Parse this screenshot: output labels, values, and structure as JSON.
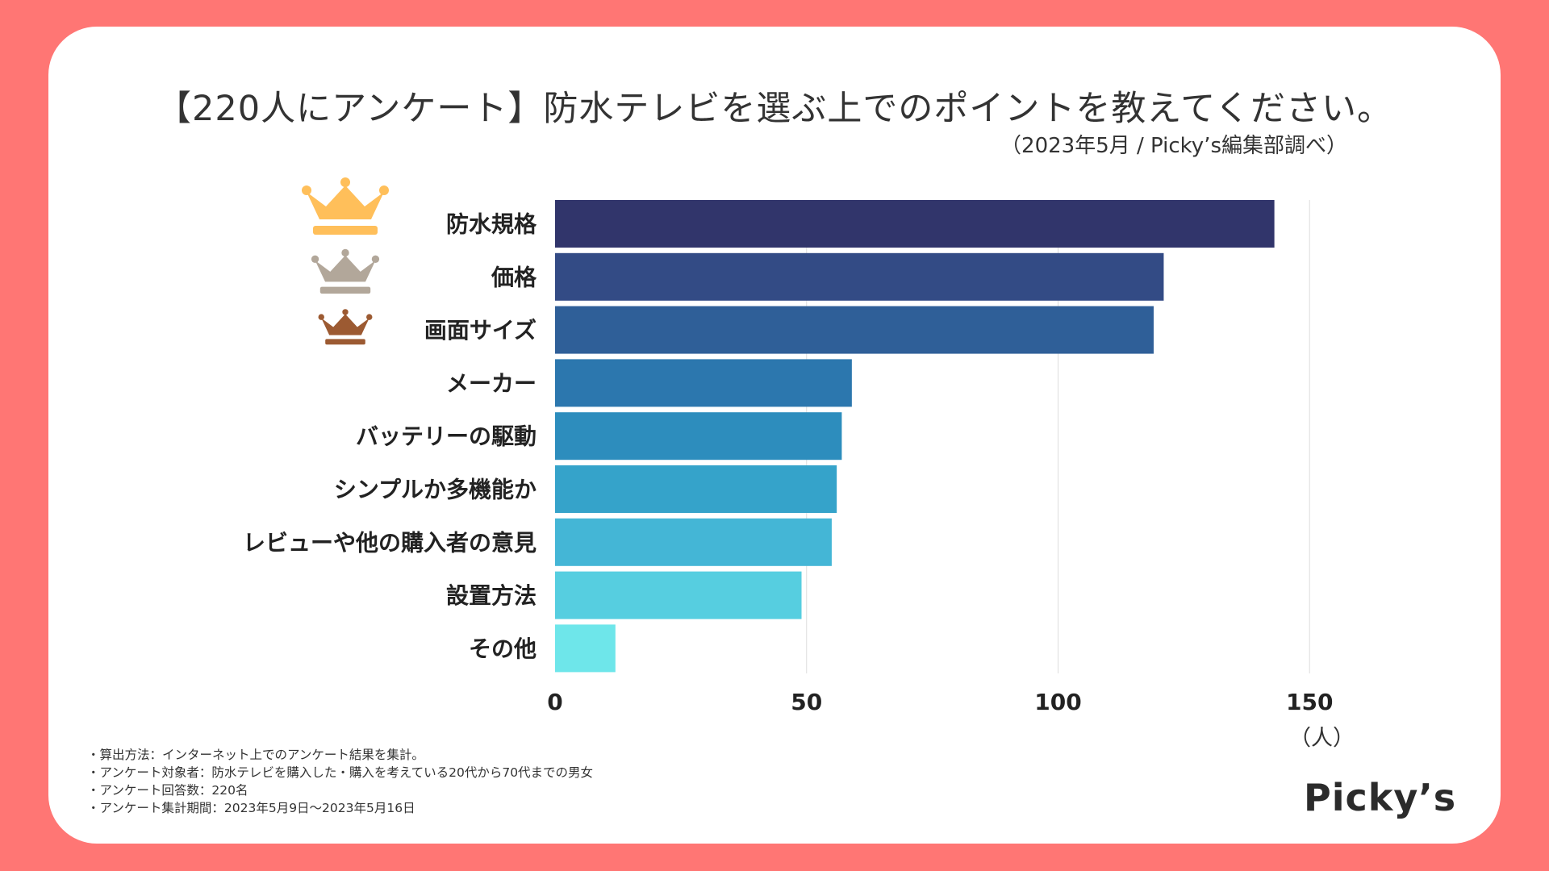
{
  "header": {
    "title": "【220人にアンケート】防水テレビを選ぶ上でのポイントを教えてください。",
    "subtitle": "（2023年5月 / Picky’s編集部調べ）"
  },
  "chart_data": {
    "type": "bar",
    "orientation": "horizontal",
    "title": "【220人にアンケート】防水テレビを選ぶ上でのポイントを教えてください。",
    "categories": [
      "防水規格",
      "価格",
      "画面サイズ",
      "メーカー",
      "バッテリーの駆動",
      "シンプルか多機能か",
      "レビューや他の購入者の意見",
      "設置方法",
      "その他"
    ],
    "values": [
      143,
      121,
      119,
      59,
      57,
      56,
      55,
      49,
      12
    ],
    "xlim": [
      0,
      150
    ],
    "xticks": [
      0,
      50,
      100,
      150
    ],
    "xlabel": "（人）",
    "ylabel": "",
    "grid": true,
    "bar_colors": [
      "#31356B",
      "#334B85",
      "#2F5F98",
      "#2C77AE",
      "#2D8DBD",
      "#35A3CA",
      "#44B6D6",
      "#56CEE0",
      "#6EE6EA"
    ],
    "rank_icons": [
      "crown-gold",
      "crown-silver",
      "crown-bronze"
    ],
    "rank_colors": [
      "#FFBF5A",
      "#B2A79A",
      "#9C5A32"
    ]
  },
  "axis": {
    "unit_label": "（人）"
  },
  "footnotes": [
    "・算出方法：インターネット上でのアンケート結果を集計。",
    "・アンケート対象者：防水テレビを購入した・購入を考えている20代から70代までの男女",
    "・アンケート回答数：220名",
    "・アンケート集計期間：2023年5月9日〜2023年5月16日"
  ],
  "brand": {
    "logo_text": "Picky’s"
  }
}
